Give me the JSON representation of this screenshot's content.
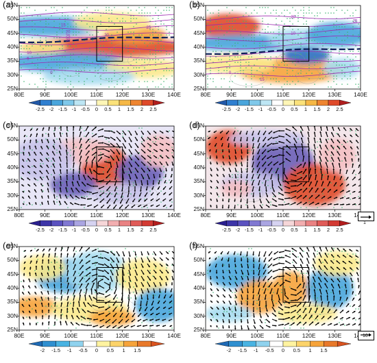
{
  "x_ticks": [
    "80E",
    "90E",
    "100E",
    "110E",
    "120E",
    "130E",
    "140E"
  ],
  "y_ticks": [
    "55N",
    "50N",
    "45N",
    "40N",
    "35N",
    "30N",
    "25N"
  ],
  "colorbar_ab": [
    "-2.5",
    "-2",
    "-1.5",
    "-1",
    "-0.5",
    "0",
    "0.5",
    "1",
    "1.5",
    "2",
    "2.5"
  ],
  "colorbar_cd": [
    "-2.5",
    "-2",
    "-1.5",
    "-1",
    "-0.5",
    "0",
    "0.5",
    "1",
    "1.5",
    "2",
    "2.5"
  ],
  "colorbar_ef": [
    "-2",
    "-1.5",
    "-1",
    "-0.5",
    "0",
    "0.5",
    "1",
    "1.5"
  ],
  "panels": [
    {
      "label": "(a)",
      "contour_labels": [
        "15",
        "20",
        "25",
        "30",
        "10",
        "5",
        "0",
        "20",
        "25"
      ]
    },
    {
      "label": "(b)",
      "contour_labels": [
        "10",
        "15",
        "20",
        "0",
        "15",
        "25"
      ]
    },
    {
      "label": "(c)"
    },
    {
      "label": "(d)"
    },
    {
      "label": "(e)"
    },
    {
      "label": "(f)"
    }
  ],
  "reference_vectors": {
    "cd": "1",
    "ef": "10"
  },
  "colors": {
    "blue_dark": "#2f6fc0",
    "blue": "#49a5dc",
    "blue_light": "#a6dcf0",
    "yellow": "#fbe98c",
    "orange": "#f6a33a",
    "red": "#df4a2a",
    "purple_dark": "#6b5fb8",
    "purple_light": "#c8c3ea",
    "pink": "#f4c0c3",
    "stipple": "#3cb371",
    "jet": "#9b27b0",
    "trough": "#0d1e5a"
  }
}
